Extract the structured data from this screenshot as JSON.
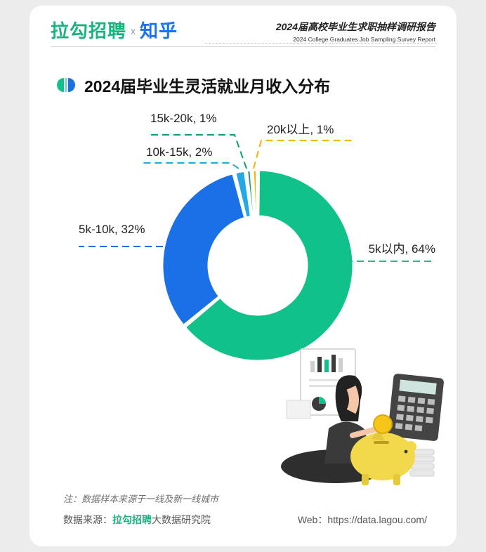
{
  "header": {
    "brand_left": "拉勾招聘",
    "brand_sep": "x",
    "brand_right": "知乎",
    "report_title": "2024届高校毕业生求职抽样调研报告",
    "report_subtitle": "2024 College Graduates Job Sampling Survey Report"
  },
  "colors": {
    "lagou_green": "#1bb27d",
    "zhihu_blue": "#1772f6"
  },
  "chart_data": {
    "type": "pie",
    "donut": true,
    "title": "2024届毕业生灵活就业月收入分布",
    "slices": [
      {
        "label": "5k以内",
        "value": 64,
        "display": "5k以内, 64%",
        "color": "#11c18a"
      },
      {
        "label": "5k-10k",
        "value": 32,
        "display": "5k-10k, 32%",
        "color": "#1a70e6"
      },
      {
        "label": "10k-15k",
        "value": 2,
        "display": "10k-15k, 2%",
        "color": "#23a9e6"
      },
      {
        "label": "15k-20k",
        "value": 1,
        "display": "15k-20k, 1%",
        "color": "#0f9c74"
      },
      {
        "label": "20k以上",
        "value": 1,
        "display": "20k以上, 1%",
        "color": "#f5b400"
      }
    ]
  },
  "footer": {
    "note": "注：数据样本来源于一线及新一线城市",
    "source_prefix": "数据来源：",
    "source_brand": "拉勾招聘",
    "source_suffix": "大数据研究院",
    "web": "Web：https://data.lagou.com/"
  }
}
